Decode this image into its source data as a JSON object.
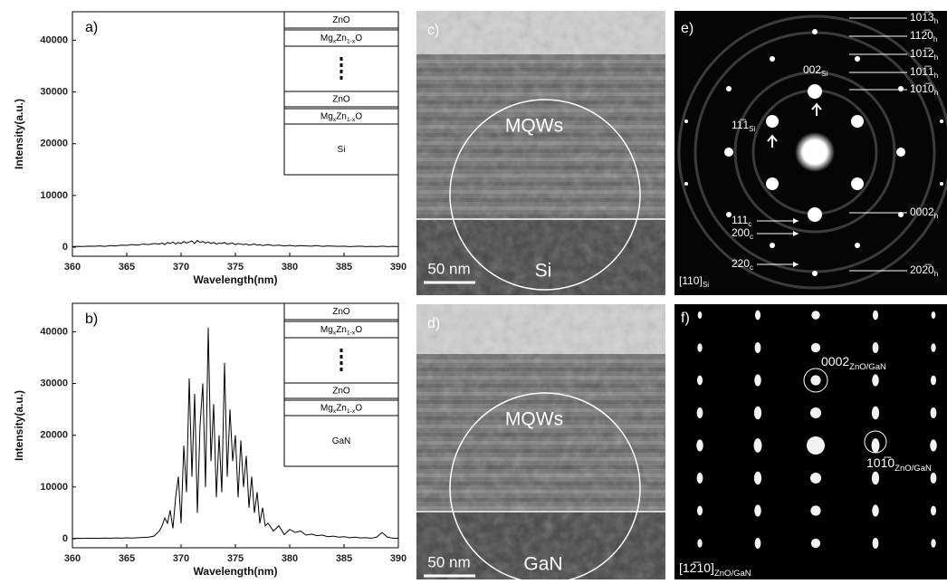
{
  "chart_data": [
    {
      "type": "line",
      "panel_label": "a)",
      "x_label": "Wavelength(nm)",
      "y_label": "Intensity(a.u.)",
      "color": "#000000",
      "x": [
        360,
        360.5,
        361,
        361.5,
        362,
        362.5,
        363,
        363.5,
        364,
        364.5,
        365,
        365.5,
        366,
        366.5,
        367,
        367.5,
        368,
        368.25,
        368.5,
        368.75,
        369,
        369.25,
        369.5,
        369.75,
        370,
        370.25,
        370.5,
        370.75,
        371,
        371.25,
        371.5,
        371.75,
        372,
        372.25,
        372.5,
        372.75,
        373,
        373.25,
        373.5,
        373.75,
        374,
        374.25,
        374.5,
        374.75,
        375,
        375.25,
        375.5,
        375.75,
        376,
        376.25,
        376.5,
        376.75,
        377,
        377.25,
        377.5,
        377.75,
        378,
        378.5,
        379,
        379.5,
        380,
        380.5,
        381,
        381.5,
        382,
        382.5,
        383,
        383.5,
        384,
        384.5,
        385,
        385.5,
        386,
        386.5,
        387,
        387.5,
        388,
        388.5,
        389,
        389.5,
        390
      ],
      "values": [
        100,
        150,
        120,
        200,
        180,
        250,
        150,
        300,
        250,
        400,
        350,
        500,
        400,
        600,
        500,
        700,
        600,
        800,
        500,
        900,
        700,
        1000,
        600,
        900,
        700,
        1100,
        800,
        1000,
        1200,
        700,
        1300,
        900,
        1100,
        800,
        1000,
        700,
        900,
        600,
        800,
        700,
        900,
        600,
        700,
        800,
        500,
        700,
        600,
        500,
        600,
        400,
        500,
        600,
        400,
        500,
        300,
        400,
        500,
        300,
        400,
        250,
        350,
        200,
        300,
        250,
        200,
        300,
        150,
        250,
        200,
        150,
        200,
        100,
        150,
        200,
        100,
        150,
        100,
        200,
        100,
        150,
        100
      ],
      "xlim": [
        360,
        390
      ],
      "xticks": [
        360,
        365,
        370,
        375,
        380,
        385,
        390
      ],
      "ylim": [
        -1750,
        45500
      ],
      "yticks": [
        0,
        10000,
        20000,
        30000,
        40000
      ],
      "inset": {
        "layers": [
          [
            {
              "text": "ZnO"
            }
          ],
          [
            {
              "text": "Mg"
            },
            {
              "sub": "x"
            },
            {
              "text": "Zn"
            },
            {
              "sub": "1-x"
            },
            {
              "text": "O"
            }
          ],
          [
            {
              "text": "ZnO"
            }
          ],
          [
            {
              "text": "Mg"
            },
            {
              "sub": "x"
            },
            {
              "text": "Zn"
            },
            {
              "sub": "1-x"
            },
            {
              "text": "O"
            }
          ],
          [
            {
              "text": "Si"
            }
          ]
        ]
      }
    },
    {
      "type": "line",
      "panel_label": "b)",
      "x_label": "Wavelength(nm)",
      "y_label": "Intensity(a.u.)",
      "color": "#000000",
      "x": [
        360,
        360.5,
        361,
        361.5,
        362,
        362.5,
        363,
        363.5,
        364,
        364.5,
        365,
        365.5,
        366,
        366.5,
        367,
        367.5,
        368,
        368.25,
        368.5,
        368.75,
        369,
        369.25,
        369.5,
        369.75,
        370,
        370.25,
        370.5,
        370.75,
        371,
        371.25,
        371.5,
        371.75,
        372,
        372.25,
        372.5,
        372.75,
        373,
        373.25,
        373.5,
        373.75,
        374,
        374.25,
        374.5,
        374.75,
        375,
        375.25,
        375.5,
        375.75,
        376,
        376.25,
        376.5,
        376.75,
        377,
        377.25,
        377.5,
        377.75,
        378,
        378.5,
        379,
        379.5,
        380,
        380.5,
        381,
        381.5,
        382,
        382.5,
        383,
        383.5,
        384,
        384.5,
        385,
        385.5,
        386,
        386.5,
        387,
        387.5,
        388,
        388.5,
        389,
        389.5,
        390
      ],
      "values": [
        50,
        80,
        60,
        100,
        70,
        90,
        120,
        80,
        150,
        100,
        180,
        120,
        200,
        250,
        300,
        500,
        1500,
        2500,
        4000,
        3000,
        5500,
        2000,
        8000,
        12000,
        3000,
        18000,
        9000,
        31000,
        12000,
        28000,
        5000,
        22000,
        30000,
        10000,
        40800,
        15000,
        26000,
        8000,
        20000,
        9000,
        34000,
        12000,
        25000,
        15000,
        20000,
        8000,
        19000,
        10000,
        16000,
        6000,
        12000,
        5000,
        9000,
        3000,
        6000,
        2500,
        3000,
        1500,
        2500,
        800,
        1800,
        1200,
        1500,
        700,
        900,
        600,
        700,
        400,
        500,
        300,
        400,
        200,
        300,
        150,
        200,
        100,
        300,
        1200,
        300,
        100,
        80
      ],
      "xlim": [
        360,
        390
      ],
      "xticks": [
        360,
        365,
        370,
        375,
        380,
        385,
        390
      ],
      "ylim": [
        -1750,
        45500
      ],
      "yticks": [
        0,
        10000,
        20000,
        30000,
        40000
      ],
      "inset": {
        "layers": [
          [
            {
              "text": "ZnO"
            }
          ],
          [
            {
              "text": "Mg"
            },
            {
              "sub": "x"
            },
            {
              "text": "Zn"
            },
            {
              "sub": "1-x"
            },
            {
              "text": "O"
            }
          ],
          [
            {
              "text": "ZnO"
            }
          ],
          [
            {
              "text": "Mg"
            },
            {
              "sub": "x"
            },
            {
              "text": "Zn"
            },
            {
              "sub": "1-x"
            },
            {
              "text": "O"
            }
          ],
          [
            {
              "text": "GaN"
            }
          ]
        ]
      }
    }
  ],
  "images": [
    {
      "label": "c)",
      "region": "MQWs",
      "substrate": "Si",
      "scale_bar": "50 nm"
    },
    {
      "label": "d)",
      "region": "MQWs",
      "substrate": "GaN",
      "scale_bar": "50 nm"
    }
  ],
  "diffraction": [
    {
      "label": "e)",
      "right_labels": [
        [
          {
            "text": "101̅3"
          },
          {
            "sub": "h"
          }
        ],
        [
          {
            "text": "112̅0"
          },
          {
            "sub": "h"
          }
        ],
        [
          {
            "text": "101̅2"
          },
          {
            "sub": "h"
          }
        ],
        [
          {
            "text": "101̅1"
          },
          {
            "sub": "h"
          }
        ],
        [
          {
            "text": "101̅0"
          },
          {
            "sub": "h"
          }
        ],
        [
          {
            "text": "0002"
          },
          {
            "sub": "h"
          }
        ],
        [
          {
            "text": "202̅0"
          },
          {
            "sub": "h"
          }
        ]
      ],
      "left_labels": [
        [
          {
            "text": "002"
          },
          {
            "sub": "Si"
          }
        ],
        [
          {
            "text": "11̅1"
          },
          {
            "sub": "Si"
          }
        ],
        [
          {
            "text": "111"
          },
          {
            "sub": "c"
          }
        ],
        [
          {
            "text": "200"
          },
          {
            "sub": "c"
          }
        ],
        [
          {
            "text": "220"
          },
          {
            "sub": "c"
          }
        ]
      ],
      "zone": [
        {
          "text": "[110]"
        },
        {
          "sub": "Si"
        }
      ]
    },
    {
      "label": "f)",
      "spot_labels": [
        [
          {
            "text": "0002"
          },
          {
            "sub": "ZnO/GaN"
          }
        ],
        [
          {
            "text": "101̅0"
          },
          {
            "sub": "ZnO/GaN"
          }
        ]
      ],
      "zone": [
        {
          "text": "[12̅10]"
        },
        {
          "sub": "ZnO/GaN"
        }
      ]
    }
  ]
}
